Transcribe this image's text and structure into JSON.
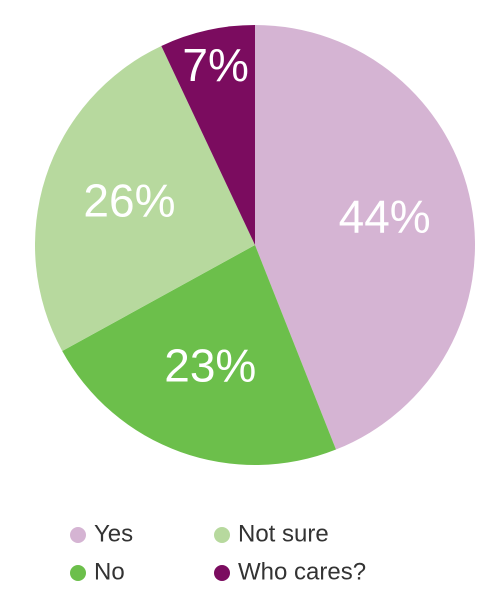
{
  "chart_data": {
    "type": "pie",
    "categories": [
      "Yes",
      "No",
      "Not sure",
      "Who cares?"
    ],
    "values": [
      44,
      23,
      26,
      7
    ],
    "value_labels": [
      "44%",
      "23%",
      "26%",
      "7%"
    ],
    "colors": [
      "#d5b4d3",
      "#6cbf4b",
      "#b7d99e",
      "#7b0c5f"
    ]
  }
}
